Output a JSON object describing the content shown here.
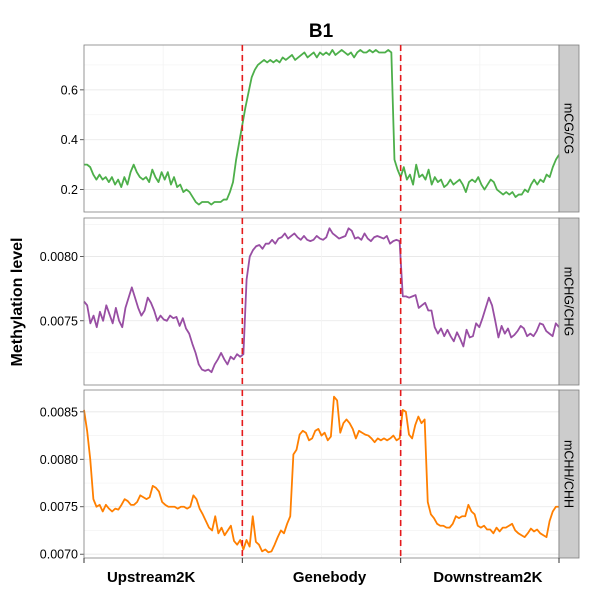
{
  "chart_data": {
    "type": "line",
    "title": "B1",
    "ylabel": "Methylation level",
    "xlabel": "",
    "x_ticks": [
      "Upstream2K",
      "Genebody",
      "Downstream2K"
    ],
    "x_range": [
      0,
      150
    ],
    "region_boundaries": [
      50,
      100
    ],
    "boundary_color": "#e41a1c",
    "grid": true,
    "panels": [
      {
        "name": "mCG/CG",
        "color": "#4daf4a",
        "ylim": [
          0.11,
          0.78
        ],
        "yticks": [
          0.2,
          0.4,
          0.6
        ],
        "ytick_labels": [
          "0.2",
          "0.4",
          "0.6"
        ],
        "values": [
          0.3,
          0.3,
          0.29,
          0.26,
          0.24,
          0.26,
          0.24,
          0.25,
          0.23,
          0.25,
          0.22,
          0.24,
          0.21,
          0.25,
          0.22,
          0.27,
          0.3,
          0.27,
          0.25,
          0.24,
          0.25,
          0.23,
          0.28,
          0.25,
          0.23,
          0.27,
          0.24,
          0.27,
          0.22,
          0.25,
          0.21,
          0.22,
          0.19,
          0.2,
          0.19,
          0.17,
          0.15,
          0.14,
          0.15,
          0.15,
          0.15,
          0.14,
          0.15,
          0.15,
          0.15,
          0.16,
          0.16,
          0.19,
          0.23,
          0.32,
          0.39,
          0.46,
          0.53,
          0.59,
          0.65,
          0.68,
          0.7,
          0.71,
          0.72,
          0.71,
          0.72,
          0.71,
          0.72,
          0.71,
          0.73,
          0.72,
          0.73,
          0.74,
          0.72,
          0.73,
          0.74,
          0.75,
          0.73,
          0.74,
          0.75,
          0.73,
          0.75,
          0.74,
          0.75,
          0.74,
          0.76,
          0.74,
          0.75,
          0.76,
          0.75,
          0.74,
          0.75,
          0.73,
          0.75,
          0.76,
          0.75,
          0.75,
          0.76,
          0.75,
          0.76,
          0.75,
          0.75,
          0.75,
          0.76,
          0.75,
          0.32,
          0.28,
          0.25,
          0.29,
          0.24,
          0.26,
          0.22,
          0.3,
          0.25,
          0.26,
          0.24,
          0.28,
          0.22,
          0.25,
          0.23,
          0.24,
          0.21,
          0.22,
          0.24,
          0.22,
          0.23,
          0.24,
          0.22,
          0.19,
          0.23,
          0.24,
          0.23,
          0.25,
          0.22,
          0.2,
          0.22,
          0.24,
          0.23,
          0.2,
          0.19,
          0.18,
          0.19,
          0.18,
          0.19,
          0.17,
          0.18,
          0.18,
          0.2,
          0.19,
          0.22,
          0.24,
          0.22,
          0.24,
          0.23,
          0.26,
          0.25,
          0.29,
          0.32,
          0.34
        ]
      },
      {
        "name": "mCHG/CHG",
        "color": "#984ea3",
        "ylim": [
          0.007,
          0.0083
        ],
        "yticks": [
          0.0075,
          0.008
        ],
        "ytick_labels": [
          "0.0075",
          "0.0080"
        ],
        "values": [
          0.00765,
          0.00762,
          0.00748,
          0.00754,
          0.00745,
          0.00757,
          0.0075,
          0.00762,
          0.00755,
          0.00748,
          0.0076,
          0.0075,
          0.00745,
          0.0076,
          0.00768,
          0.00776,
          0.00768,
          0.0076,
          0.00754,
          0.00758,
          0.00768,
          0.00764,
          0.00758,
          0.0075,
          0.00754,
          0.00751,
          0.0075,
          0.00754,
          0.00752,
          0.00753,
          0.00746,
          0.00752,
          0.00744,
          0.0074,
          0.00732,
          0.00725,
          0.00716,
          0.00712,
          0.00711,
          0.00712,
          0.0071,
          0.00716,
          0.0072,
          0.00725,
          0.0072,
          0.00716,
          0.00722,
          0.0072,
          0.00724,
          0.00722,
          0.00724,
          0.00782,
          0.008,
          0.00805,
          0.00808,
          0.00809,
          0.00806,
          0.0081,
          0.0081,
          0.00813,
          0.0081,
          0.00814,
          0.00815,
          0.00818,
          0.00814,
          0.00816,
          0.00818,
          0.00815,
          0.00813,
          0.00816,
          0.00813,
          0.00812,
          0.00813,
          0.00816,
          0.00814,
          0.00813,
          0.00815,
          0.00822,
          0.00818,
          0.00816,
          0.00814,
          0.00815,
          0.00816,
          0.00822,
          0.0082,
          0.00814,
          0.00815,
          0.00813,
          0.00818,
          0.00814,
          0.00812,
          0.00815,
          0.00816,
          0.00815,
          0.00814,
          0.00816,
          0.0081,
          0.00812,
          0.00813,
          0.00812,
          0.00769,
          0.00769,
          0.00768,
          0.00769,
          0.0077,
          0.0076,
          0.00762,
          0.00764,
          0.00758,
          0.00758,
          0.00745,
          0.0074,
          0.00744,
          0.00738,
          0.00743,
          0.00738,
          0.00734,
          0.00741,
          0.00736,
          0.0073,
          0.00743,
          0.00737,
          0.00738,
          0.00748,
          0.00745,
          0.00752,
          0.0076,
          0.00768,
          0.00762,
          0.0075,
          0.00737,
          0.00746,
          0.0074,
          0.00744,
          0.00737,
          0.00739,
          0.00742,
          0.00746,
          0.00744,
          0.00738,
          0.0074,
          0.00738,
          0.00742,
          0.00748,
          0.00747,
          0.00742,
          0.0074,
          0.00738,
          0.00748,
          0.00745
        ]
      },
      {
        "name": "mCHH/CHH",
        "color": "#ff7f00",
        "ylim": [
          0.00696,
          0.00873
        ],
        "yticks": [
          0.007,
          0.0075,
          0.008,
          0.0085
        ],
        "ytick_labels": [
          "0.0070",
          "0.0075",
          "0.0080",
          "0.0085"
        ],
        "values": [
          0.00852,
          0.0083,
          0.008,
          0.00758,
          0.0075,
          0.00752,
          0.00745,
          0.00752,
          0.00748,
          0.00745,
          0.00748,
          0.00747,
          0.00752,
          0.00758,
          0.00756,
          0.00752,
          0.00752,
          0.00755,
          0.00762,
          0.0076,
          0.00758,
          0.0076,
          0.00772,
          0.0077,
          0.00766,
          0.00755,
          0.00752,
          0.0075,
          0.0075,
          0.0075,
          0.00748,
          0.0075,
          0.0075,
          0.00748,
          0.0075,
          0.00762,
          0.00758,
          0.00748,
          0.00742,
          0.00735,
          0.00728,
          0.00725,
          0.0074,
          0.00722,
          0.00728,
          0.0072,
          0.00725,
          0.0073,
          0.00714,
          0.0071,
          0.00715,
          0.00705,
          0.00715,
          0.00708,
          0.0074,
          0.00713,
          0.0071,
          0.00703,
          0.00705,
          0.00702,
          0.00703,
          0.0071,
          0.00718,
          0.00725,
          0.00722,
          0.00732,
          0.0074,
          0.00805,
          0.0081,
          0.00826,
          0.0083,
          0.00828,
          0.0082,
          0.00822,
          0.0083,
          0.00832,
          0.00825,
          0.00828,
          0.0082,
          0.00824,
          0.00866,
          0.00862,
          0.00828,
          0.00838,
          0.00842,
          0.00838,
          0.00832,
          0.00822,
          0.0083,
          0.00828,
          0.00826,
          0.00825,
          0.00822,
          0.00818,
          0.00822,
          0.0082,
          0.00822,
          0.0082,
          0.00822,
          0.00825,
          0.0082,
          0.00822,
          0.00852,
          0.0085,
          0.00826,
          0.00822,
          0.00836,
          0.00845,
          0.00838,
          0.00842,
          0.00755,
          0.00742,
          0.00738,
          0.00732,
          0.0073,
          0.0073,
          0.00728,
          0.00728,
          0.00732,
          0.0074,
          0.00738,
          0.0074,
          0.0074,
          0.00752,
          0.00745,
          0.00742,
          0.0073,
          0.00728,
          0.0073,
          0.00726,
          0.00726,
          0.00722,
          0.00728,
          0.00724,
          0.00728,
          0.00728,
          0.0073,
          0.00732,
          0.00725,
          0.00722,
          0.0072,
          0.00718,
          0.00722,
          0.00727,
          0.00724,
          0.00726,
          0.00722,
          0.0072,
          0.00718,
          0.00735,
          0.00745,
          0.0075,
          0.0075
        ]
      }
    ]
  }
}
